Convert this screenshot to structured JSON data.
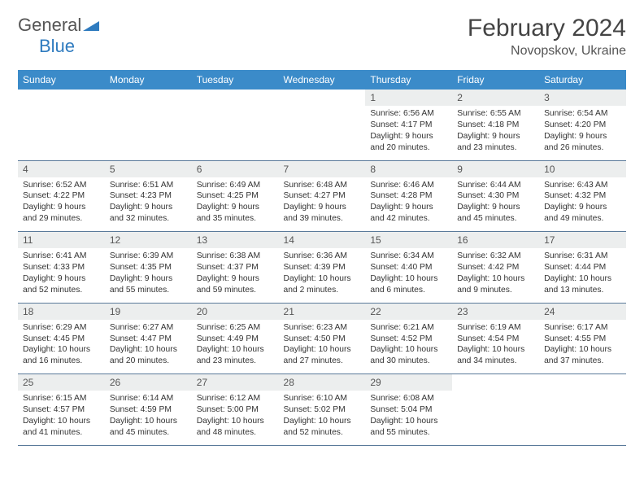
{
  "brand": {
    "t1": "General",
    "t2": "Blue"
  },
  "title": {
    "month": "February 2024",
    "location": "Novopskov, Ukraine"
  },
  "weekdays": [
    "Sunday",
    "Monday",
    "Tuesday",
    "Wednesday",
    "Thursday",
    "Friday",
    "Saturday"
  ],
  "colors": {
    "header_bg": "#3b8bc9",
    "header_fg": "#ffffff",
    "daynum_bg": "#eceeee",
    "rule": "#5a7a9a",
    "logo_blue": "#2f7bbf"
  },
  "fonts": {
    "title_month_pt": 30,
    "title_location_pt": 16,
    "weekday_pt": 12,
    "daynum_pt": 12,
    "cell_pt": 10.3
  },
  "weeks": [
    [
      null,
      null,
      null,
      null,
      {
        "n": "1",
        "sr": "6:56 AM",
        "ss": "4:17 PM",
        "dl": "9 hours and 20 minutes."
      },
      {
        "n": "2",
        "sr": "6:55 AM",
        "ss": "4:18 PM",
        "dl": "9 hours and 23 minutes."
      },
      {
        "n": "3",
        "sr": "6:54 AM",
        "ss": "4:20 PM",
        "dl": "9 hours and 26 minutes."
      }
    ],
    [
      {
        "n": "4",
        "sr": "6:52 AM",
        "ss": "4:22 PM",
        "dl": "9 hours and 29 minutes."
      },
      {
        "n": "5",
        "sr": "6:51 AM",
        "ss": "4:23 PM",
        "dl": "9 hours and 32 minutes."
      },
      {
        "n": "6",
        "sr": "6:49 AM",
        "ss": "4:25 PM",
        "dl": "9 hours and 35 minutes."
      },
      {
        "n": "7",
        "sr": "6:48 AM",
        "ss": "4:27 PM",
        "dl": "9 hours and 39 minutes."
      },
      {
        "n": "8",
        "sr": "6:46 AM",
        "ss": "4:28 PM",
        "dl": "9 hours and 42 minutes."
      },
      {
        "n": "9",
        "sr": "6:44 AM",
        "ss": "4:30 PM",
        "dl": "9 hours and 45 minutes."
      },
      {
        "n": "10",
        "sr": "6:43 AM",
        "ss": "4:32 PM",
        "dl": "9 hours and 49 minutes."
      }
    ],
    [
      {
        "n": "11",
        "sr": "6:41 AM",
        "ss": "4:33 PM",
        "dl": "9 hours and 52 minutes."
      },
      {
        "n": "12",
        "sr": "6:39 AM",
        "ss": "4:35 PM",
        "dl": "9 hours and 55 minutes."
      },
      {
        "n": "13",
        "sr": "6:38 AM",
        "ss": "4:37 PM",
        "dl": "9 hours and 59 minutes."
      },
      {
        "n": "14",
        "sr": "6:36 AM",
        "ss": "4:39 PM",
        "dl": "10 hours and 2 minutes."
      },
      {
        "n": "15",
        "sr": "6:34 AM",
        "ss": "4:40 PM",
        "dl": "10 hours and 6 minutes."
      },
      {
        "n": "16",
        "sr": "6:32 AM",
        "ss": "4:42 PM",
        "dl": "10 hours and 9 minutes."
      },
      {
        "n": "17",
        "sr": "6:31 AM",
        "ss": "4:44 PM",
        "dl": "10 hours and 13 minutes."
      }
    ],
    [
      {
        "n": "18",
        "sr": "6:29 AM",
        "ss": "4:45 PM",
        "dl": "10 hours and 16 minutes."
      },
      {
        "n": "19",
        "sr": "6:27 AM",
        "ss": "4:47 PM",
        "dl": "10 hours and 20 minutes."
      },
      {
        "n": "20",
        "sr": "6:25 AM",
        "ss": "4:49 PM",
        "dl": "10 hours and 23 minutes."
      },
      {
        "n": "21",
        "sr": "6:23 AM",
        "ss": "4:50 PM",
        "dl": "10 hours and 27 minutes."
      },
      {
        "n": "22",
        "sr": "6:21 AM",
        "ss": "4:52 PM",
        "dl": "10 hours and 30 minutes."
      },
      {
        "n": "23",
        "sr": "6:19 AM",
        "ss": "4:54 PM",
        "dl": "10 hours and 34 minutes."
      },
      {
        "n": "24",
        "sr": "6:17 AM",
        "ss": "4:55 PM",
        "dl": "10 hours and 37 minutes."
      }
    ],
    [
      {
        "n": "25",
        "sr": "6:15 AM",
        "ss": "4:57 PM",
        "dl": "10 hours and 41 minutes."
      },
      {
        "n": "26",
        "sr": "6:14 AM",
        "ss": "4:59 PM",
        "dl": "10 hours and 45 minutes."
      },
      {
        "n": "27",
        "sr": "6:12 AM",
        "ss": "5:00 PM",
        "dl": "10 hours and 48 minutes."
      },
      {
        "n": "28",
        "sr": "6:10 AM",
        "ss": "5:02 PM",
        "dl": "10 hours and 52 minutes."
      },
      {
        "n": "29",
        "sr": "6:08 AM",
        "ss": "5:04 PM",
        "dl": "10 hours and 55 minutes."
      },
      null,
      null
    ]
  ],
  "labels": {
    "sunrise": "Sunrise:",
    "sunset": "Sunset:",
    "daylight": "Daylight:"
  }
}
